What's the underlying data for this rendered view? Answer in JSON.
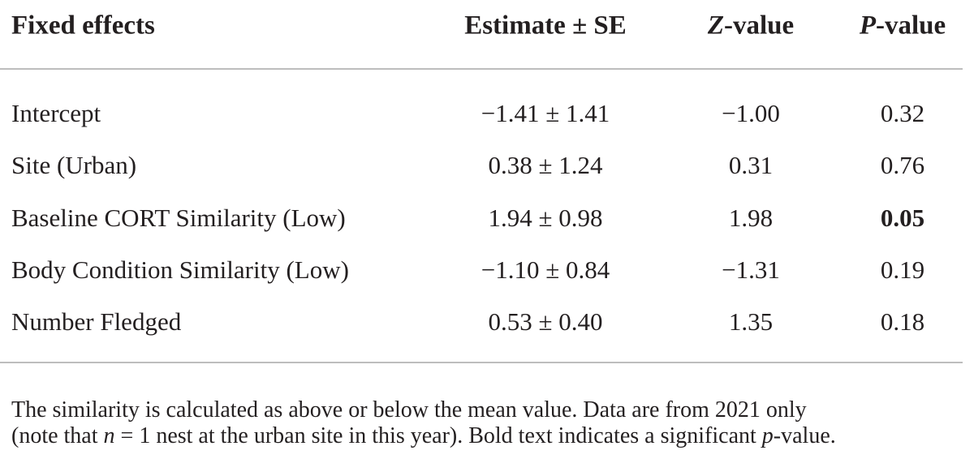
{
  "table": {
    "header": [
      [
        "Fixed effects"
      ],
      [
        "Estimate ± SE"
      ],
      [
        "Z",
        "-value"
      ],
      [
        "P",
        "-value"
      ]
    ],
    "rows": [
      [
        "Intercept",
        "−1.41 ± 1.41",
        "−1.00",
        "0.32"
      ],
      [
        "Site (Urban)",
        "0.38 ± 1.24",
        "0.31",
        "0.76"
      ],
      [
        "Baseline CORT Similarity (Low)",
        "1.94 ± 0.98",
        "1.98",
        "0.05"
      ],
      [
        "Body Condition Similarity (Low)",
        "−1.10 ± 0.84",
        "−1.31",
        "0.19"
      ],
      [
        "Number Fledged",
        "0.53 ± 0.40",
        "1.35",
        "0.18"
      ]
    ]
  },
  "footnote": [
    "The similarity is calculated as above or below the mean value. Data are from 2021 only",
    "(note that ",
    "n",
    " = 1 nest at the urban site in this year). Bold text indicates a significant ",
    "p",
    "-value."
  ]
}
